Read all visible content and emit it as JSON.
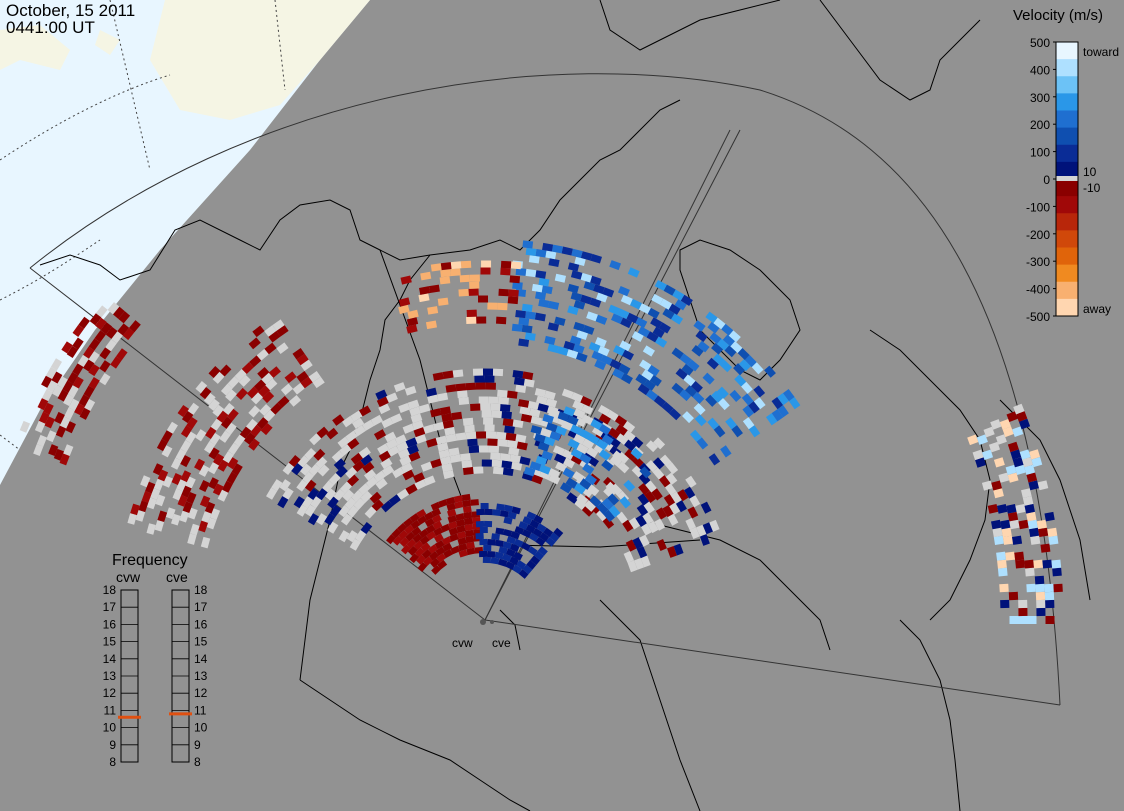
{
  "header": {
    "date": "October, 15 2011",
    "time": "0441:00 UT"
  },
  "velocity_scale": {
    "title": "Velocity (m/s)",
    "ticks": [
      "500",
      "400",
      "300",
      "200",
      "100",
      "0",
      "-100",
      "-200",
      "-300",
      "-400",
      "-500"
    ],
    "right_labels": {
      "toward": "toward",
      "pos10": "10",
      "neg10": "-10",
      "away": "away"
    },
    "colors": [
      "#e8f6ff",
      "#aee0ff",
      "#6cc2f6",
      "#2a97e8",
      "#1f6fd0",
      "#0f4fb0",
      "#0a2c96",
      "#00127a",
      "#8a0000",
      "#a00808",
      "#b8260a",
      "#d0480a",
      "#e0640a",
      "#f08a20",
      "#f8b070",
      "#ffd6b0"
    ]
  },
  "frequency_panel": {
    "title": "Frequency",
    "radars": [
      "cvw",
      "cve"
    ],
    "ticks": [
      "18",
      "17",
      "16",
      "15",
      "14",
      "13",
      "12",
      "11",
      "10",
      "9",
      "8"
    ],
    "cvw_mhz": 10.6,
    "cve_mhz": 10.8,
    "marker_color": "#e05010"
  },
  "site_labels": {
    "cvw": "cvw",
    "cve": "cve"
  },
  "colors": {
    "background": "#929292",
    "ocean": "#e8f6ff",
    "land_unobserved": "#f5f5e4",
    "ground_scatter": "#d4d4d4"
  }
}
